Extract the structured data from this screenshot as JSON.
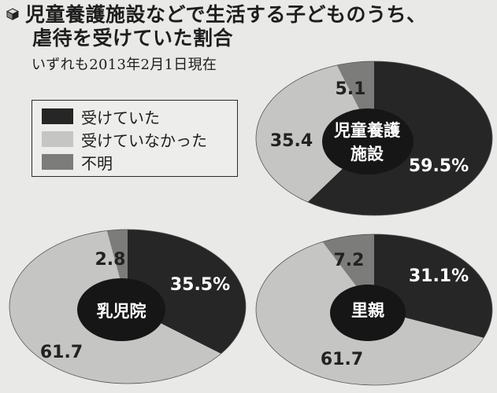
{
  "title": {
    "line1": "児童養護施設などで生活する子どものうち、",
    "line2": "虐待を受けていた割合"
  },
  "subtitle": "いずれも2013年2月1日現在",
  "colors": {
    "abused": "#262626",
    "not_abused": "#c5c5c3",
    "unknown": "#7c7c7a",
    "background": "#e9e9e7"
  },
  "legend": [
    {
      "label": "受けていた",
      "color": "#262626"
    },
    {
      "label": "受けていなかった",
      "color": "#c5c5c3"
    },
    {
      "label": "不明",
      "color": "#7c7c7a"
    }
  ],
  "chart_data": [
    {
      "type": "pie",
      "center_label": [
        "児童養護",
        "施設"
      ],
      "categories": [
        "受けていた",
        "受けていなかった",
        "不明"
      ],
      "values": [
        59.5,
        35.4,
        5.1
      ],
      "data_labels": [
        "59.5%",
        "35.4",
        "5.1"
      ]
    },
    {
      "type": "pie",
      "center_label": [
        "乳児院"
      ],
      "categories": [
        "受けていた",
        "受けていなかった",
        "不明"
      ],
      "values": [
        35.5,
        61.7,
        2.8
      ],
      "data_labels": [
        "35.5%",
        "61.7",
        "2.8"
      ]
    },
    {
      "type": "pie",
      "center_label": [
        "里親"
      ],
      "categories": [
        "受けていた",
        "受けていなかった",
        "不明"
      ],
      "values": [
        31.1,
        61.7,
        7.2
      ],
      "data_labels": [
        "31.1%",
        "61.7",
        "7.2"
      ]
    }
  ]
}
